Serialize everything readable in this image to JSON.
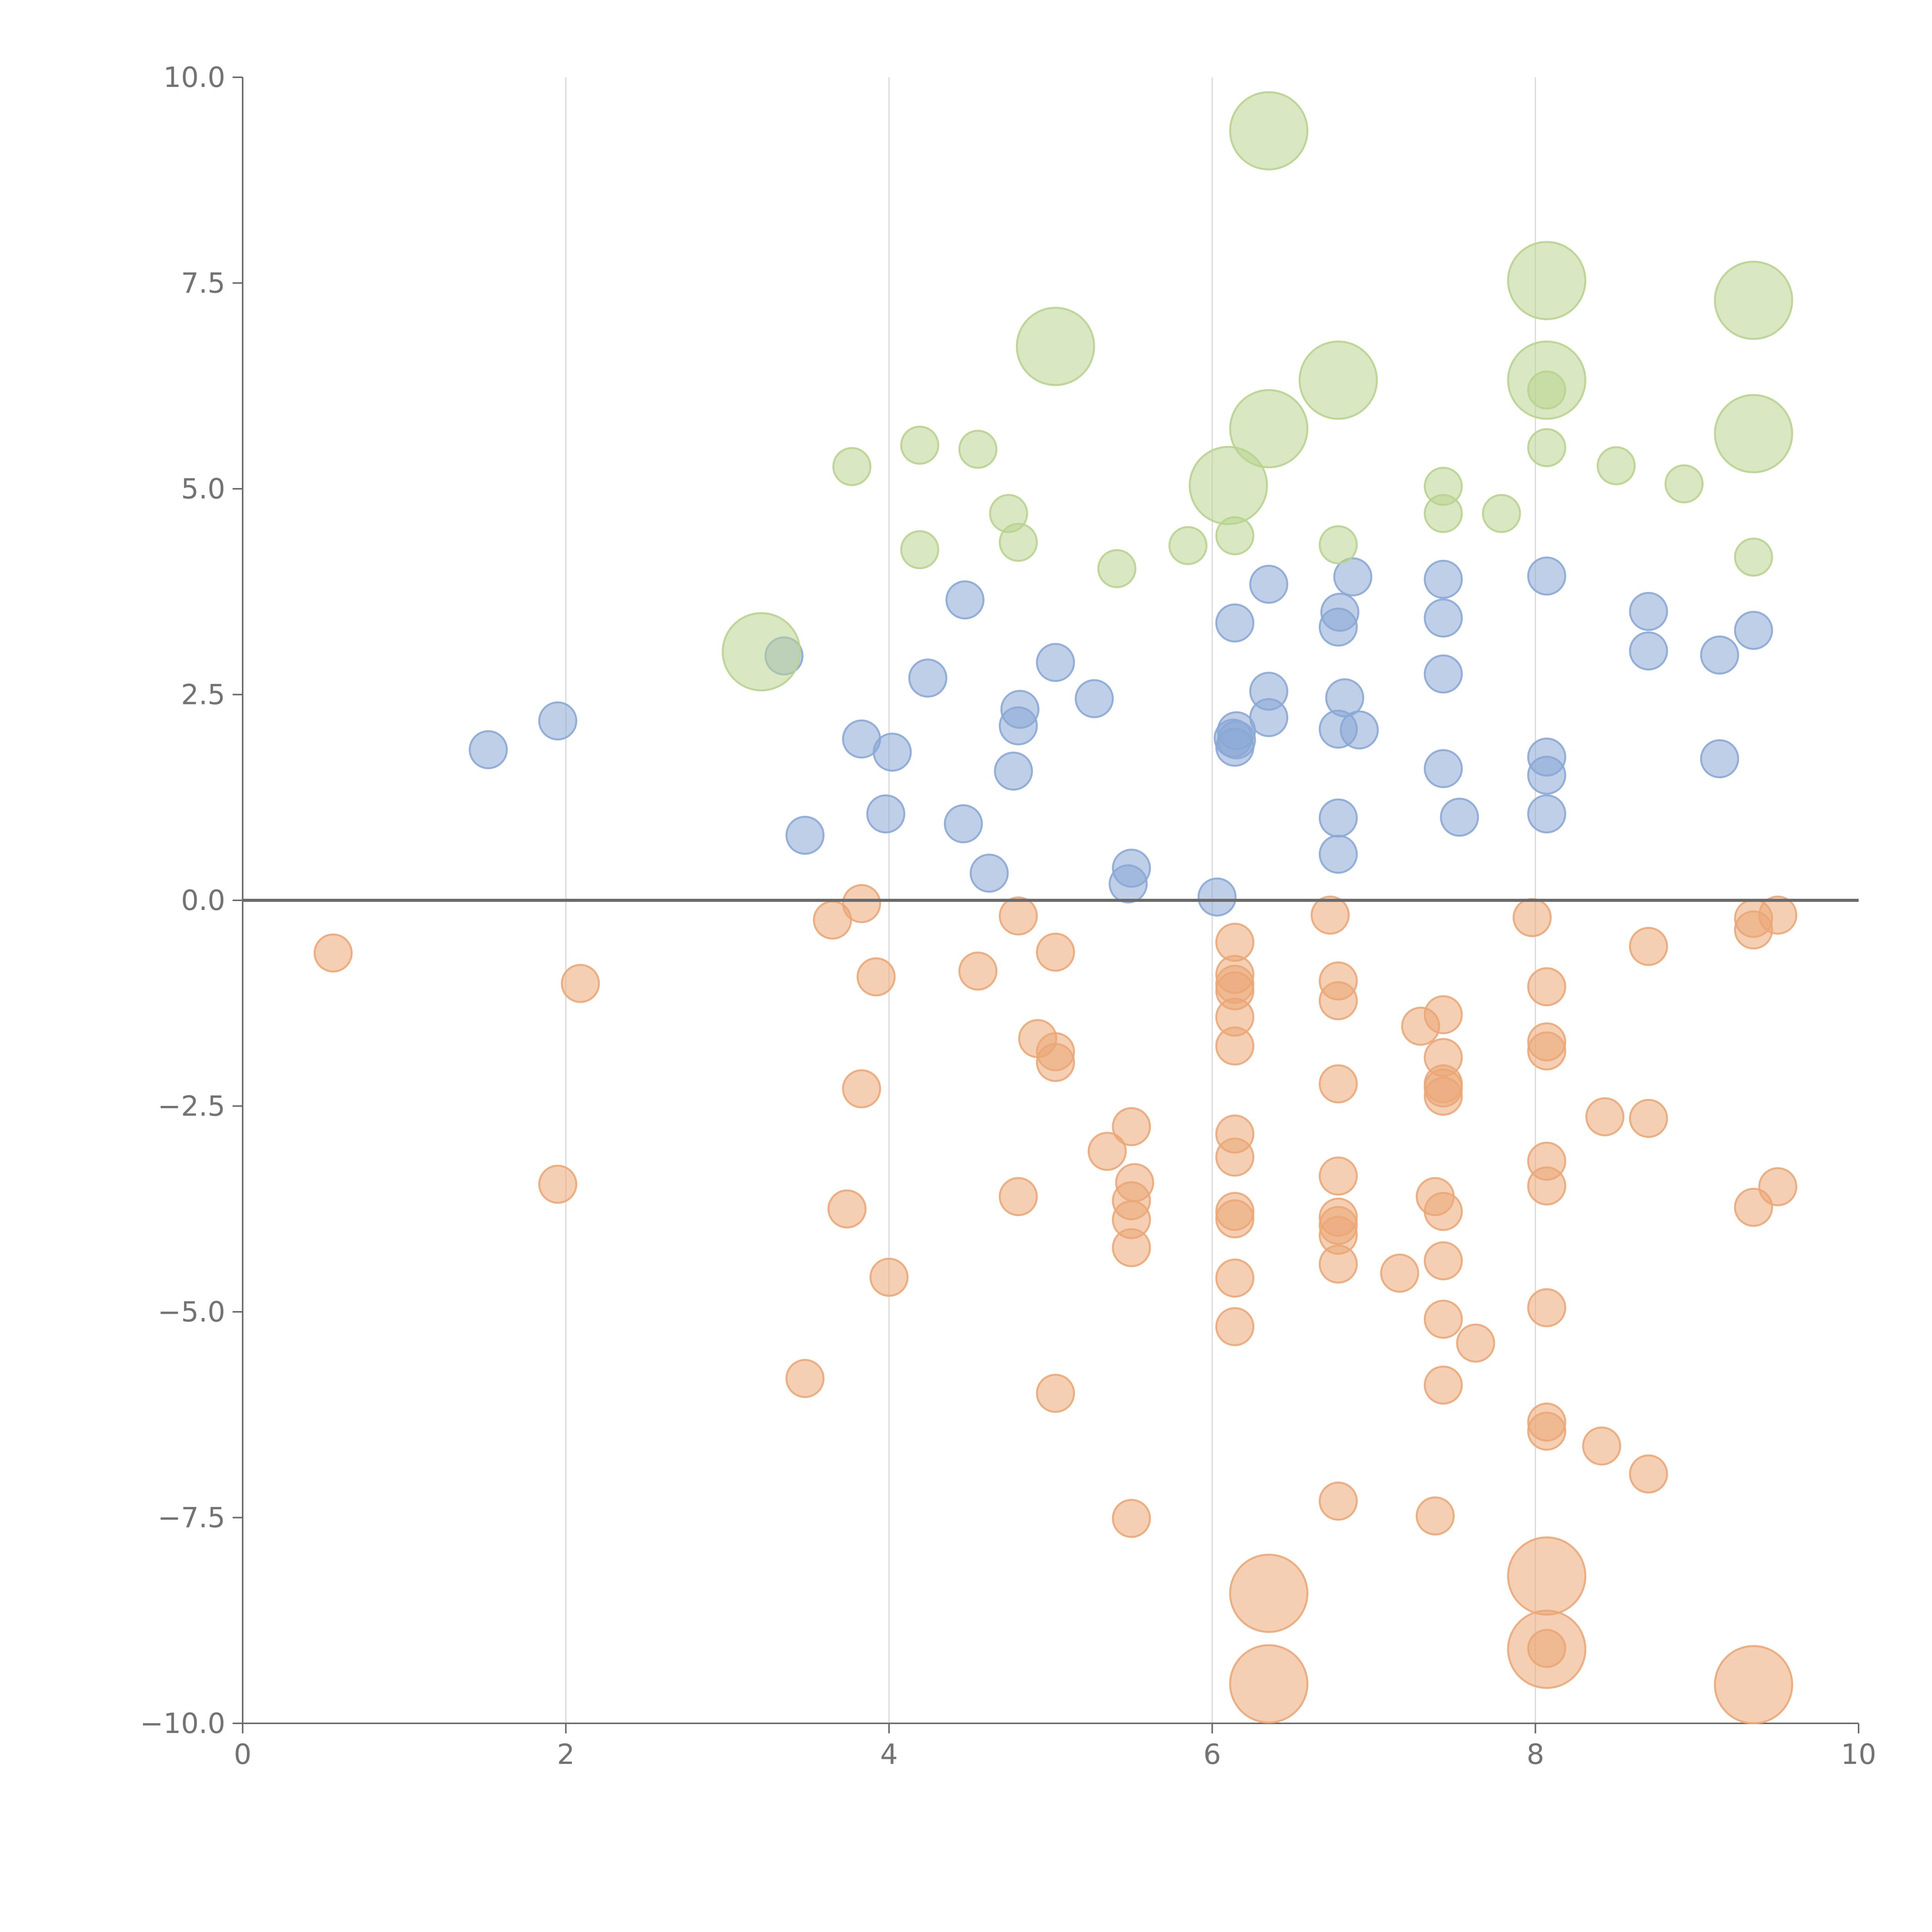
{
  "chart_data": {
    "type": "scatter",
    "title": "",
    "xlabel": "",
    "ylabel": "",
    "xlim": [
      0,
      10
    ],
    "ylim": [
      -10,
      10
    ],
    "x_ticks": [
      "0",
      "2",
      "4",
      "6",
      "8",
      "10"
    ],
    "y_ticks": [
      "10.0",
      "7.5",
      "5.0",
      "2.5",
      "0.0",
      "−2.5",
      "−5.0",
      "−7.5",
      "−10.0"
    ],
    "grid": "vertical lines at x ticks",
    "horizontal_reference_line_y": 0,
    "colors": {
      "blue": "#8aa8d6",
      "orange": "#eba777",
      "green": "#b9d38f",
      "axis": "#6b6b6b",
      "grid": "#d9d9d9",
      "tick_text": "#737373"
    },
    "series": [
      {
        "color": "blue",
        "size": "small",
        "points": [
          [
            1.52,
            1.83
          ],
          [
            1.95,
            2.18
          ],
          [
            3.35,
            2.97
          ],
          [
            3.48,
            0.79
          ],
          [
            3.83,
            1.96
          ],
          [
            3.98,
            1.05
          ],
          [
            4.02,
            1.8
          ],
          [
            4.24,
            2.7
          ],
          [
            4.46,
            0.93
          ],
          [
            4.47,
            3.65
          ],
          [
            4.62,
            0.33
          ],
          [
            4.77,
            1.57
          ],
          [
            4.8,
            2.12
          ],
          [
            4.81,
            2.32
          ],
          [
            5.03,
            2.89
          ],
          [
            5.27,
            2.45
          ],
          [
            5.48,
            0.2
          ],
          [
            5.5,
            0.39
          ],
          [
            6.03,
            0.04
          ],
          [
            6.13,
            1.97
          ],
          [
            6.14,
            3.37
          ],
          [
            6.14,
            1.86
          ],
          [
            6.15,
            2.06
          ],
          [
            6.15,
            1.95
          ],
          [
            6.35,
            2.22
          ],
          [
            6.35,
            2.54
          ],
          [
            6.35,
            3.84
          ],
          [
            6.78,
            1.0
          ],
          [
            6.78,
            0.56
          ],
          [
            6.78,
            3.32
          ],
          [
            6.78,
            2.08
          ],
          [
            6.79,
            3.5
          ],
          [
            6.82,
            2.46
          ],
          [
            6.87,
            3.93
          ],
          [
            6.91,
            2.07
          ],
          [
            7.43,
            3.9
          ],
          [
            7.43,
            3.43
          ],
          [
            7.43,
            1.6
          ],
          [
            7.43,
            2.75
          ],
          [
            7.53,
            1.01
          ],
          [
            8.07,
            3.94
          ],
          [
            8.07,
            1.05
          ],
          [
            8.07,
            1.52
          ],
          [
            8.07,
            1.74
          ],
          [
            8.7,
            3.51
          ],
          [
            8.7,
            3.03
          ],
          [
            9.14,
            2.98
          ],
          [
            9.14,
            1.72
          ],
          [
            9.35,
            3.28
          ]
        ]
      },
      {
        "color": "orange",
        "size": "small",
        "points": [
          [
            0.56,
            -0.64
          ],
          [
            1.95,
            -3.45
          ],
          [
            2.09,
            -1.01
          ],
          [
            3.48,
            -5.81
          ],
          [
            3.65,
            -0.24
          ],
          [
            3.74,
            -3.75
          ],
          [
            3.83,
            -0.04
          ],
          [
            3.83,
            -2.29
          ],
          [
            3.92,
            -0.93
          ],
          [
            4.0,
            -4.58
          ],
          [
            4.55,
            -0.86
          ],
          [
            4.8,
            -0.19
          ],
          [
            4.8,
            -3.6
          ],
          [
            4.92,
            -1.68
          ],
          [
            5.03,
            -0.63
          ],
          [
            5.03,
            -1.97
          ],
          [
            5.03,
            -1.84
          ],
          [
            5.03,
            -5.99
          ],
          [
            5.35,
            -3.05
          ],
          [
            5.5,
            -2.75
          ],
          [
            5.5,
            -3.65
          ],
          [
            5.5,
            -3.88
          ],
          [
            5.5,
            -4.22
          ],
          [
            5.5,
            -7.51
          ],
          [
            5.52,
            -3.43
          ],
          [
            6.14,
            -0.51
          ],
          [
            6.14,
            -0.9
          ],
          [
            6.14,
            -1.1
          ],
          [
            6.14,
            -1.42
          ],
          [
            6.14,
            -1.77
          ],
          [
            6.14,
            -2.84
          ],
          [
            6.14,
            -3.12
          ],
          [
            6.14,
            -3.78
          ],
          [
            6.14,
            -3.87
          ],
          [
            6.14,
            -4.59
          ],
          [
            6.14,
            -5.18
          ],
          [
            6.14,
            -1.02
          ],
          [
            6.73,
            -0.18
          ],
          [
            6.78,
            -0.98
          ],
          [
            6.78,
            -1.22
          ],
          [
            6.78,
            -2.23
          ],
          [
            6.78,
            -3.35
          ],
          [
            6.78,
            -3.85
          ],
          [
            6.78,
            -3.95
          ],
          [
            6.78,
            -4.07
          ],
          [
            6.78,
            -4.42
          ],
          [
            6.78,
            -7.3
          ],
          [
            7.16,
            -4.53
          ],
          [
            7.29,
            -1.53
          ],
          [
            7.38,
            -3.6
          ],
          [
            7.38,
            -7.48
          ],
          [
            7.43,
            -1.39
          ],
          [
            7.43,
            -1.91
          ],
          [
            7.43,
            -2.28
          ],
          [
            7.43,
            -2.38
          ],
          [
            7.43,
            -3.78
          ],
          [
            7.43,
            -4.38
          ],
          [
            7.43,
            -5.09
          ],
          [
            7.43,
            -5.89
          ],
          [
            7.43,
            -2.23
          ],
          [
            7.63,
            -5.38
          ],
          [
            7.98,
            -0.21
          ],
          [
            8.07,
            -1.05
          ],
          [
            8.07,
            -1.72
          ],
          [
            8.07,
            -1.83
          ],
          [
            8.07,
            -3.17
          ],
          [
            8.07,
            -3.47
          ],
          [
            8.07,
            -4.95
          ],
          [
            8.07,
            -6.34
          ],
          [
            8.07,
            -6.45
          ],
          [
            8.07,
            -9.09
          ],
          [
            8.41,
            -6.63
          ],
          [
            8.43,
            -2.63
          ],
          [
            8.7,
            -0.56
          ],
          [
            8.7,
            -2.65
          ],
          [
            8.7,
            -6.97
          ],
          [
            9.35,
            -0.22
          ],
          [
            9.35,
            -0.36
          ],
          [
            9.35,
            -3.73
          ],
          [
            9.5,
            -0.18
          ],
          [
            9.5,
            -3.48
          ]
        ]
      },
      {
        "color": "green",
        "size": "small",
        "points": [
          [
            3.77,
            5.27
          ],
          [
            4.19,
            5.53
          ],
          [
            4.19,
            4.26
          ],
          [
            4.55,
            5.48
          ],
          [
            4.74,
            4.7
          ],
          [
            4.8,
            4.35
          ],
          [
            5.41,
            4.03
          ],
          [
            5.85,
            4.31
          ],
          [
            6.14,
            4.43
          ],
          [
            6.78,
            4.32
          ],
          [
            7.43,
            5.03
          ],
          [
            7.43,
            4.7
          ],
          [
            7.79,
            4.7
          ],
          [
            8.07,
            5.5
          ],
          [
            8.07,
            6.2
          ],
          [
            8.5,
            5.28
          ],
          [
            8.92,
            5.06
          ],
          [
            9.35,
            4.17
          ]
        ]
      },
      {
        "color": "orange",
        "size": "large",
        "points": [
          [
            6.35,
            -8.42
          ],
          [
            6.35,
            -9.52
          ],
          [
            8.07,
            -8.21
          ],
          [
            8.07,
            -9.1
          ],
          [
            9.35,
            -9.53
          ]
        ]
      },
      {
        "color": "green",
        "size": "large",
        "points": [
          [
            3.21,
            3.02
          ],
          [
            5.03,
            6.73
          ],
          [
            6.1,
            5.04
          ],
          [
            6.35,
            9.35
          ],
          [
            6.35,
            5.73
          ],
          [
            6.78,
            6.32
          ],
          [
            8.07,
            7.53
          ],
          [
            8.07,
            6.32
          ],
          [
            9.35,
            7.29
          ],
          [
            9.35,
            5.67
          ]
        ]
      }
    ]
  }
}
